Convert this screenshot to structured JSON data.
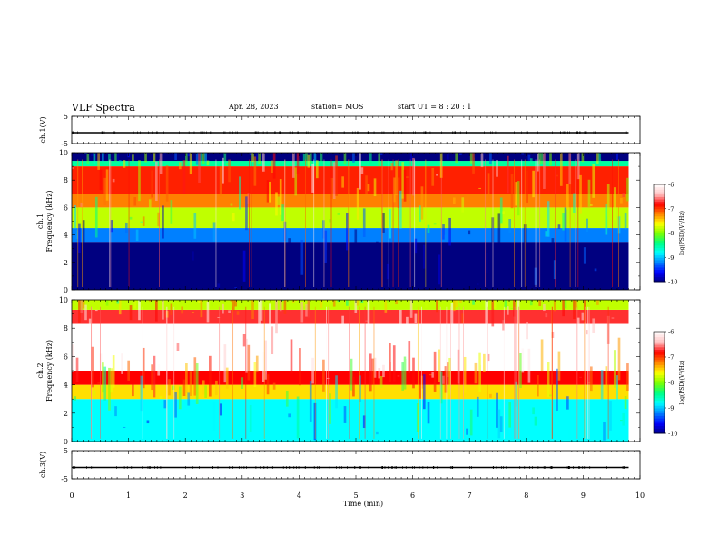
{
  "header": {
    "title": "VLF Spectra",
    "date": "Apr. 28, 2023",
    "station": "station= MOS",
    "start": "start  UT =   8 : 20 : 1"
  },
  "colors": {
    "colormap": [
      "#000080",
      "#0000ff",
      "#0080ff",
      "#00ffff",
      "#00ff80",
      "#80ff00",
      "#ffff00",
      "#ff8000",
      "#ff0000",
      "#ffc0c0",
      "#ffffff"
    ],
    "axis": "#000000",
    "background": "#ffffff"
  },
  "chart_data": [
    {
      "type": "line",
      "ylabel": "ch.1(V)",
      "ylim": [
        -5,
        5
      ],
      "yticks": [
        "5",
        "-5"
      ],
      "xlim": [
        0,
        10
      ],
      "series": [
        {
          "x": [
            0,
            9.8
          ],
          "y": [
            0,
            0
          ]
        }
      ]
    },
    {
      "type": "heatmap",
      "ylabel": "ch.1\nFrequency (kHz)",
      "ylim": [
        0,
        10
      ],
      "yticks": [
        "0",
        "2",
        "4",
        "6",
        "8",
        "10"
      ],
      "xlim": [
        0,
        10
      ],
      "data_end_min": 9.8,
      "colorbar": {
        "label": "log(PSD)(V²/Hz)",
        "range": [
          -10,
          -6
        ],
        "ticks": [
          "-6",
          "-7",
          "-8",
          "-9",
          "-10"
        ]
      },
      "bands": [
        {
          "f_from": 0,
          "f_to": 3.5,
          "log_psd": -10
        },
        {
          "f_from": 3.5,
          "f_to": 4.5,
          "log_psd": -9.2
        },
        {
          "f_from": 4.5,
          "f_to": 6,
          "log_psd": -7.8
        },
        {
          "f_from": 6,
          "f_to": 7,
          "log_psd": -7.2
        },
        {
          "f_from": 7,
          "f_to": 9,
          "log_psd": -6.9
        },
        {
          "f_from": 9,
          "f_to": 9.4,
          "log_psd": -8.5
        },
        {
          "f_from": 9.4,
          "f_to": 10,
          "log_psd": -10
        }
      ]
    },
    {
      "type": "heatmap",
      "ylabel": "ch.2\nFrequency (kHz)",
      "ylim": [
        0,
        10
      ],
      "yticks": [
        "0",
        "2",
        "4",
        "6",
        "8",
        "10"
      ],
      "xlim": [
        0,
        10
      ],
      "data_end_min": 9.8,
      "colorbar": {
        "label": "log(PSD)(V²/Hz)",
        "range": [
          -10,
          -6
        ],
        "ticks": [
          "-6",
          "-7",
          "-8",
          "-9",
          "-10"
        ]
      },
      "bands": [
        {
          "f_from": 0,
          "f_to": 3,
          "log_psd": -8.8
        },
        {
          "f_from": 3,
          "f_to": 4,
          "log_psd": -7.5
        },
        {
          "f_from": 4,
          "f_to": 5,
          "log_psd": -6.8
        },
        {
          "f_from": 5,
          "f_to": 8.3,
          "log_psd": -6.0
        },
        {
          "f_from": 8.3,
          "f_to": 9.3,
          "log_psd": -6.7
        },
        {
          "f_from": 9.3,
          "f_to": 10,
          "log_psd": -7.8
        }
      ]
    },
    {
      "type": "line",
      "ylabel": "ch.3(V)",
      "xlabel": "Time (min)",
      "ylim": [
        -5,
        5
      ],
      "yticks": [
        "5",
        "-5"
      ],
      "xlim": [
        0,
        10
      ],
      "xticks": [
        "0",
        "1",
        "2",
        "3",
        "4",
        "5",
        "6",
        "7",
        "8",
        "9",
        "10"
      ],
      "series": [
        {
          "x": [
            0,
            9.8
          ],
          "y": [
            0,
            0
          ]
        }
      ]
    }
  ]
}
